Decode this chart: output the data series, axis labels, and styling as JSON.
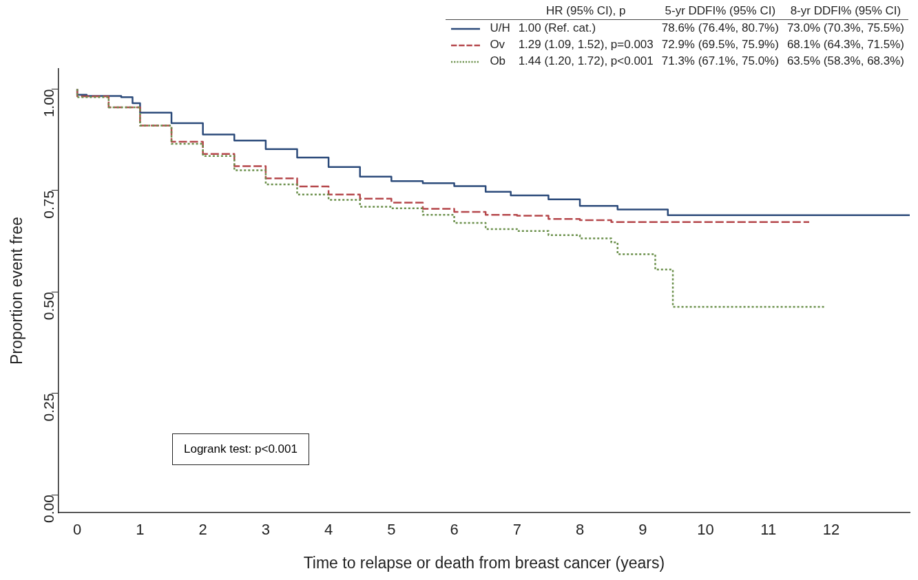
{
  "chart_data": {
    "type": "step",
    "xlabel": "Time to relapse or death from breast cancer (years)",
    "ylabel": "Proportion event free",
    "xlim": [
      -0.3,
      13.25
    ],
    "ylim": [
      -0.044,
      1.05
    ],
    "xticks": [
      0,
      1,
      2,
      3,
      4,
      5,
      6,
      7,
      8,
      9,
      10,
      11,
      12
    ],
    "yticks": [
      {
        "value": 0,
        "label": "0.00"
      },
      {
        "value": 0.25,
        "label": "0.25"
      },
      {
        "value": 0.5,
        "label": "0.50"
      },
      {
        "value": 0.75,
        "label": "0.75"
      },
      {
        "value": 1,
        "label": "1.00"
      }
    ],
    "grid": false,
    "legend": "top right",
    "marker": "none",
    "annotations": [
      "HR (95% CI), p",
      "5-yr DDFI% (95% CI)",
      "8-yr DDFI% (95% CI)",
      "1.00 (Ref. cat.)",
      "78.6% (76.4%, 80.7%)",
      "73.0% (70.3%, 75.5%)",
      "1.29 (1.09, 1.52), p=0.003",
      "72.9% (69.5%, 75.9%)",
      "68.1% (64.3%, 71.5%)",
      "1.44 (1.20, 1.72), p<0.001",
      "71.3% (67.1%, 75.0%)",
      "63.5% (58.3%, 68.3%)",
      "Logrank test: p<0.001"
    ],
    "series": [
      {
        "name": "U/H",
        "color": "#2b4a7a",
        "line_style": "solid",
        "x": [
          0,
          0.15,
          0.7,
          0.88,
          1,
          1.5,
          2,
          2.5,
          3,
          3.5,
          4,
          4.5,
          5,
          5.5,
          6,
          6.5,
          6.9,
          7.5,
          8,
          8.6,
          9.4,
          10,
          13.25
        ],
        "values": [
          1,
          0.986,
          0.983,
          0.98,
          0.965,
          0.942,
          0.916,
          0.888,
          0.873,
          0.852,
          0.831,
          0.808,
          0.784,
          0.773,
          0.768,
          0.761,
          0.747,
          0.738,
          0.728,
          0.712,
          0.703,
          0.689,
          0.689
        ]
      },
      {
        "name": "Ov",
        "color": "#b5474b",
        "line_style": "dashed",
        "x": [
          0,
          0.5,
          1,
          1.5,
          2,
          2.5,
          3,
          3.5,
          4,
          4.5,
          5,
          5.5,
          6,
          6.5,
          7,
          7.5,
          8,
          8.5,
          8.6,
          11.65
        ],
        "values": [
          1,
          0.982,
          0.955,
          0.91,
          0.87,
          0.84,
          0.81,
          0.78,
          0.76,
          0.74,
          0.73,
          0.72,
          0.705,
          0.697,
          0.69,
          0.688,
          0.68,
          0.677,
          0.672,
          0.672
        ]
      },
      {
        "name": "Ob",
        "color": "#6a8f4a",
        "line_style": "dotted",
        "x": [
          0,
          0.5,
          1,
          1.5,
          2,
          2.5,
          3,
          3.5,
          4,
          4.5,
          5,
          5.5,
          6,
          6.5,
          7,
          7.5,
          8,
          8.5,
          8.6,
          9.2,
          9.48,
          10,
          11.91
        ],
        "values": [
          1,
          0.98,
          0.955,
          0.91,
          0.865,
          0.835,
          0.8,
          0.765,
          0.74,
          0.727,
          0.71,
          0.706,
          0.69,
          0.67,
          0.655,
          0.65,
          0.64,
          0.632,
          0.622,
          0.593,
          0.555,
          0.463,
          0.463
        ]
      }
    ]
  }
}
